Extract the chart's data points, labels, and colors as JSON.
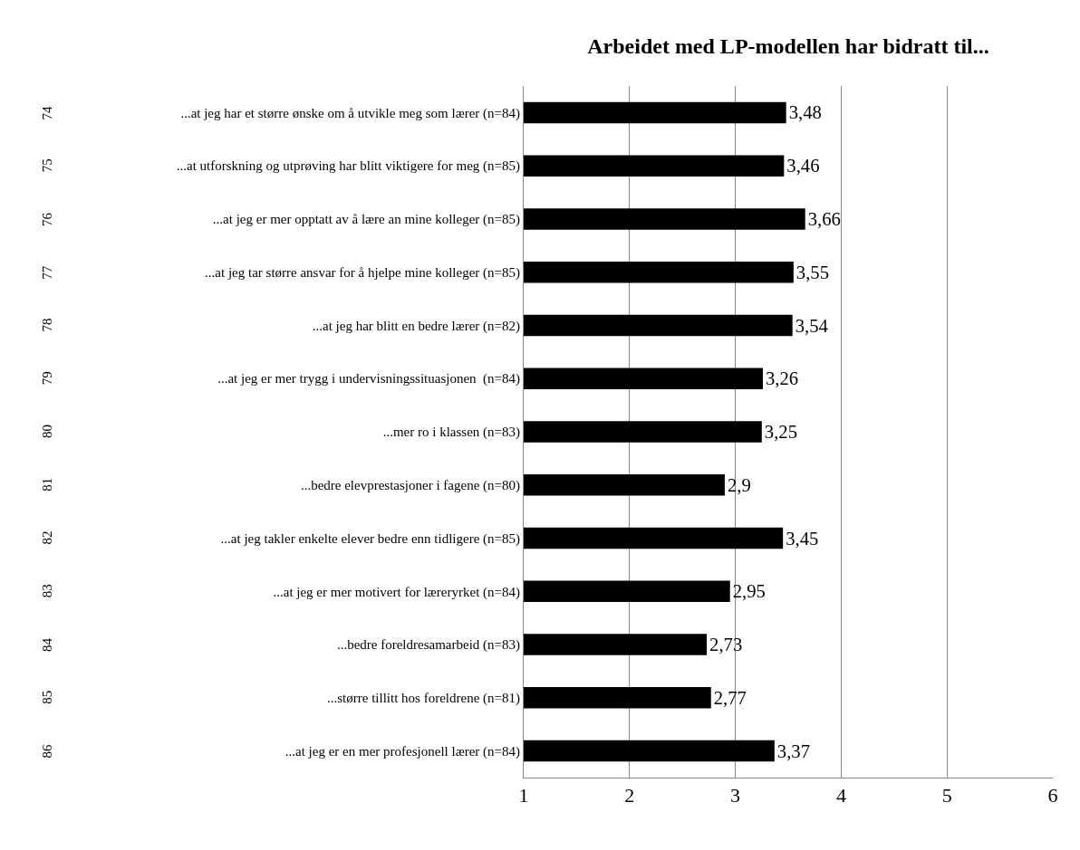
{
  "chart_data": {
    "type": "bar",
    "orientation": "horizontal",
    "title": "Arbeidet med LP-modellen har bidratt til...",
    "categories": [
      "...at jeg har et større ønske om å utvikle meg som lærer (n=84)",
      "...at utforskning og utprøving har blitt viktigere for meg (n=85)",
      "...at jeg er mer opptatt av å lære an mine kolleger (n=85)",
      "...at jeg tar større ansvar for å hjelpe mine kolleger (n=85)",
      "...at jeg har blitt en bedre lærer (n=82)",
      "...at jeg er mer trygg i undervisningssituasjonen  (n=84)",
      "...mer ro i klassen (n=83)",
      "...bedre elevprestasjoner i fagene (n=80)",
      "...at jeg takler enkelte elever bedre enn tidligere (n=85)",
      "...at jeg er mer motivert for læreryrket (n=84)",
      "...bedre foreldresamarbeid (n=83)",
      "...større tillitt hos foreldrene (n=81)",
      "...at jeg er en mer profesjonell lærer (n=84)"
    ],
    "values": [
      3.48,
      3.46,
      3.66,
      3.55,
      3.54,
      3.26,
      3.25,
      2.9,
      3.45,
      2.95,
      2.73,
      2.77,
      3.37
    ],
    "value_labels": [
      "3,48",
      "3,46",
      "3,66",
      "3,55",
      "3,54",
      "3,26",
      "3,25",
      "2,9",
      "3,45",
      "2,95",
      "2,73",
      "2,77",
      "3,37"
    ],
    "color": "#000000",
    "xlim": [
      1,
      6
    ],
    "xticks": [
      1,
      2,
      3,
      4,
      5,
      6
    ],
    "grid": "x",
    "legend": false,
    "annotations": [
      "74",
      "75",
      "76",
      "77",
      "78",
      "79",
      "80",
      "81",
      "82",
      "83",
      "84",
      "85",
      "86"
    ]
  }
}
